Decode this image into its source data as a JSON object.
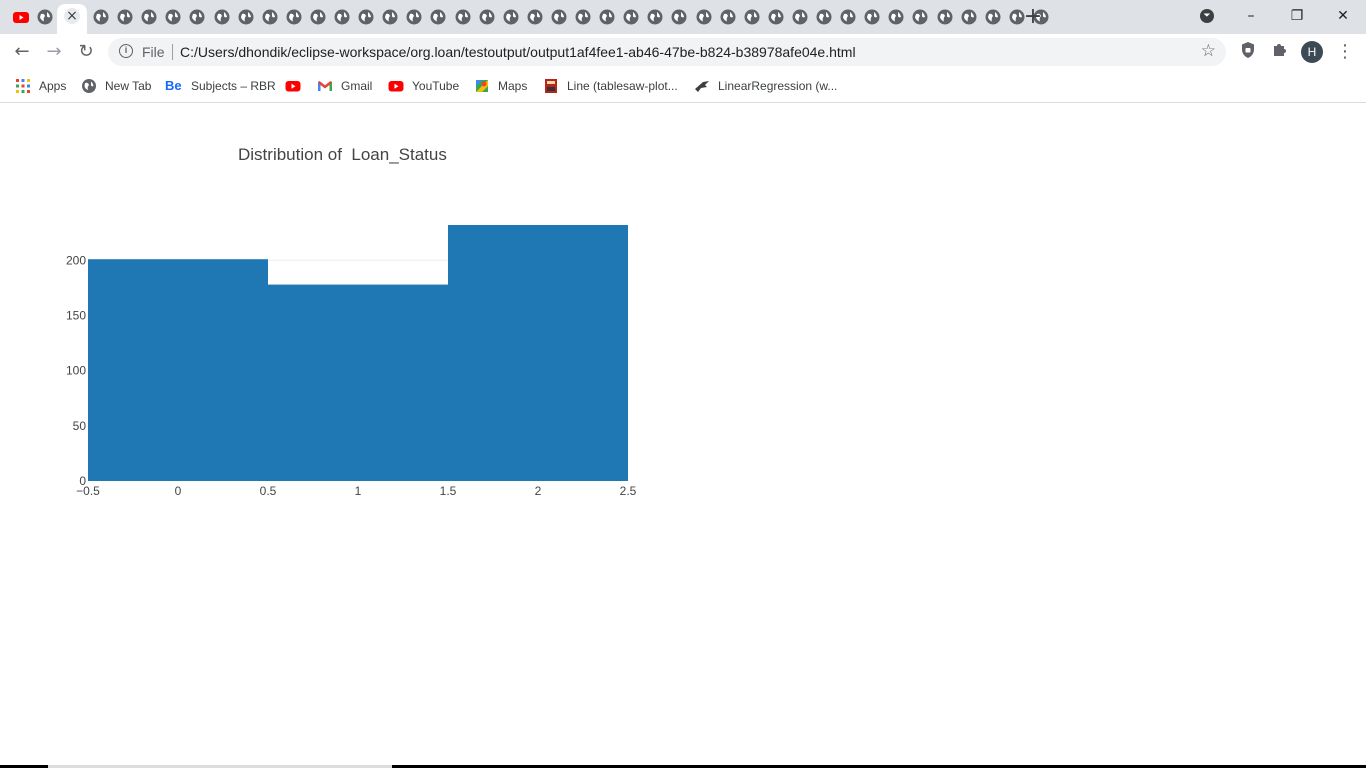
{
  "browser": {
    "tabs": {
      "first_icon": "youtube-icon",
      "active_close": "×",
      "other_icon": "globe-icon",
      "other_count": 40
    },
    "new_tab_label": "+",
    "window_controls": {
      "profile_menu": "⏷",
      "minimize": "–",
      "restore": "❐",
      "close": "✕"
    },
    "nav": {
      "back": "←",
      "forward": "→",
      "reload": "↻"
    },
    "address": {
      "info_icon": "i",
      "scheme_label": "File",
      "url": "C:/Users/dhondik/eclipse-workspace/org.loan/testoutput/output1af4fee1-ab46-47be-b824-b38978afe04e.html",
      "star": "☆"
    },
    "toolbar_icons": {
      "shield": "shield-icon",
      "extensions": "puzzle-icon",
      "menu": "⋮"
    },
    "profile_initial": "H",
    "bookmarks": [
      {
        "label": "Apps",
        "icon": "apps-grid-icon"
      },
      {
        "label": "New Tab",
        "icon": "globe-icon"
      },
      {
        "label": "Subjects – RBR",
        "icon": "behance-icon",
        "icon_text": "Be"
      },
      {
        "label": "",
        "icon": "youtube-icon"
      },
      {
        "label": "Gmail",
        "icon": "gmail-icon"
      },
      {
        "label": "YouTube",
        "icon": "youtube-icon"
      },
      {
        "label": "Maps",
        "icon": "maps-icon"
      },
      {
        "label": "Line (tablesaw-plot...",
        "icon": "book-icon"
      },
      {
        "label": "LinearRegression (w...",
        "icon": "bird-icon"
      }
    ]
  },
  "colors": {
    "bar": "#1f77b4",
    "tabstrip": "#dee1e6",
    "youtube": "#ff0000",
    "axis_text": "#444444"
  },
  "chart_data": {
    "type": "bar",
    "title": "Distribution of  Loan_Status",
    "bins": [
      {
        "x0": -0.5,
        "x1": 0.5,
        "count": 201
      },
      {
        "x0": 0.5,
        "x1": 1.5,
        "count": 178
      },
      {
        "x0": 1.5,
        "x1": 2.5,
        "count": 232
      }
    ],
    "xlim": [
      -0.5,
      2.5
    ],
    "ylim": [
      0,
      232
    ],
    "x_ticks": [
      "−0.5",
      "0",
      "0.5",
      "1",
      "1.5",
      "2",
      "2.5"
    ],
    "y_ticks": [
      "0",
      "50",
      "100",
      "150",
      "200"
    ],
    "xlabel": "",
    "ylabel": "",
    "grid": true,
    "legend": false
  }
}
